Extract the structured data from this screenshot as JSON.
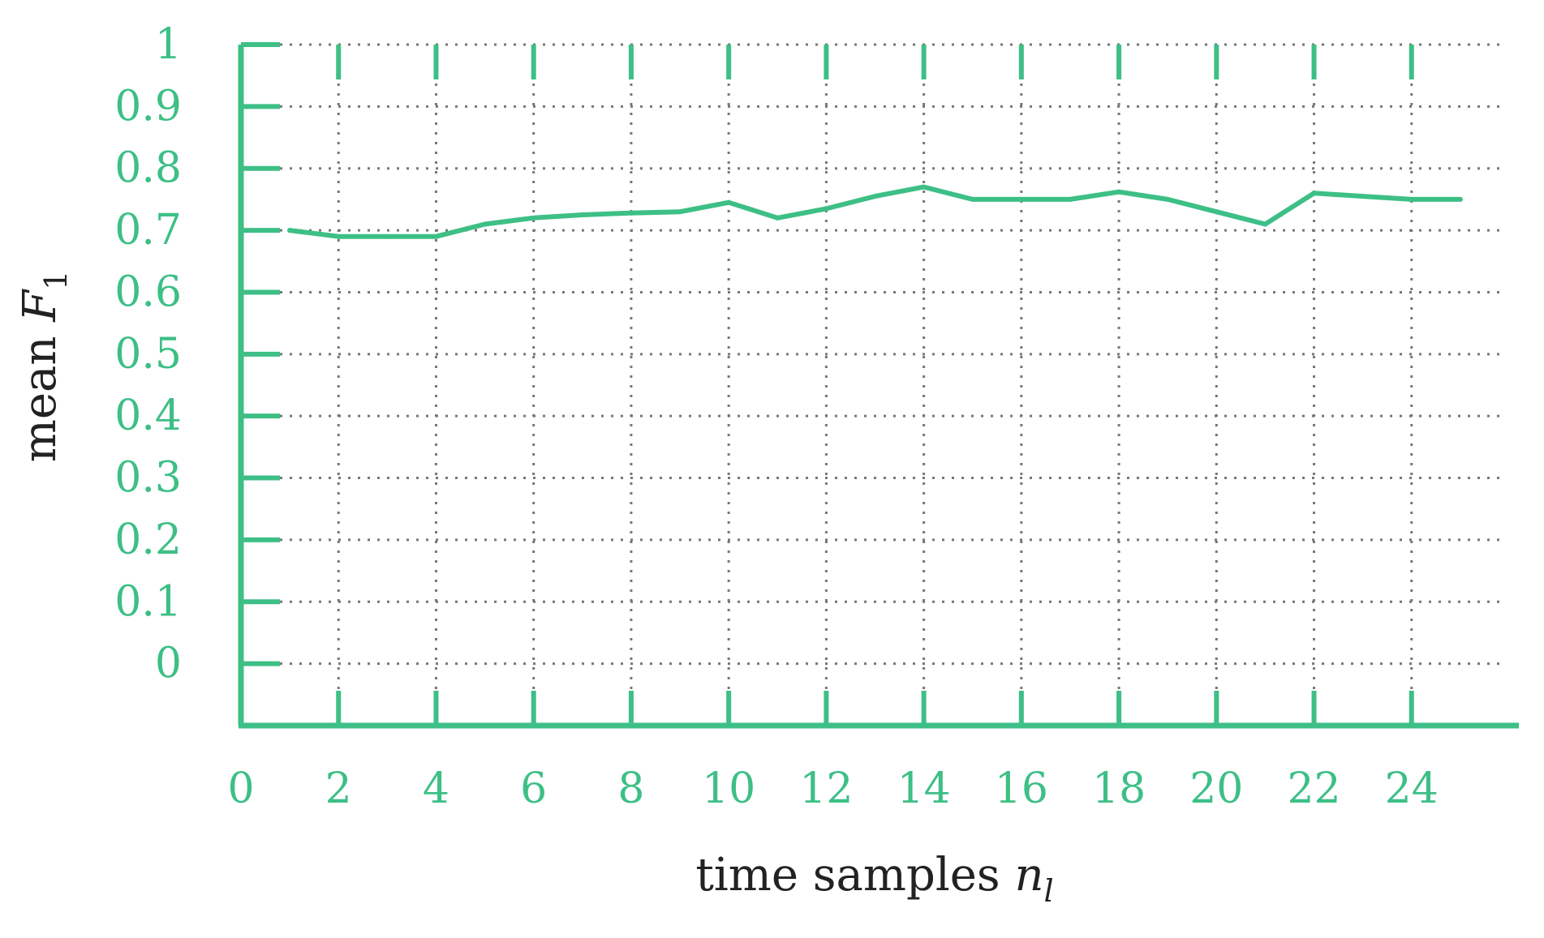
{
  "chart_data": {
    "type": "line",
    "xlabel": {
      "main": "time samples ",
      "var": "n",
      "sub": "l"
    },
    "ylabel": {
      "main": "mean ",
      "var": "F",
      "sub": "1"
    },
    "xlim": [
      0,
      26
    ],
    "ylim": [
      -0.1,
      1
    ],
    "x_ticks": [
      0,
      2,
      4,
      6,
      8,
      10,
      12,
      14,
      16,
      18,
      20,
      22,
      24
    ],
    "x_tick_labels": [
      "0",
      "2",
      "4",
      "6",
      "8",
      "10",
      "12",
      "14",
      "16",
      "18",
      "20",
      "22",
      "24"
    ],
    "y_ticks": [
      0,
      0.1,
      0.2,
      0.3,
      0.4,
      0.5,
      0.6,
      0.7,
      0.8,
      0.9,
      1
    ],
    "y_tick_labels": [
      "0",
      "0.1",
      "0.2",
      "0.3",
      "0.4",
      "0.5",
      "0.6",
      "0.7",
      "0.8",
      "0.9",
      "1"
    ],
    "grid": true,
    "colors": {
      "axis": "#3dbf86",
      "line": "#3dbf86",
      "grid": "#777777",
      "title": "#222222"
    },
    "series": [
      {
        "x": [
          1,
          2,
          3,
          4,
          5,
          6,
          7,
          8,
          9,
          10,
          11,
          12,
          13,
          14,
          15,
          16,
          17,
          18,
          19,
          20,
          21,
          22,
          23,
          24,
          25
        ],
        "y": [
          0.7,
          0.69,
          0.69,
          0.69,
          0.71,
          0.72,
          0.725,
          0.728,
          0.73,
          0.745,
          0.72,
          0.735,
          0.755,
          0.77,
          0.75,
          0.75,
          0.75,
          0.762,
          0.75,
          0.73,
          0.71,
          0.76,
          0.755,
          0.75,
          0.75
        ]
      }
    ]
  }
}
